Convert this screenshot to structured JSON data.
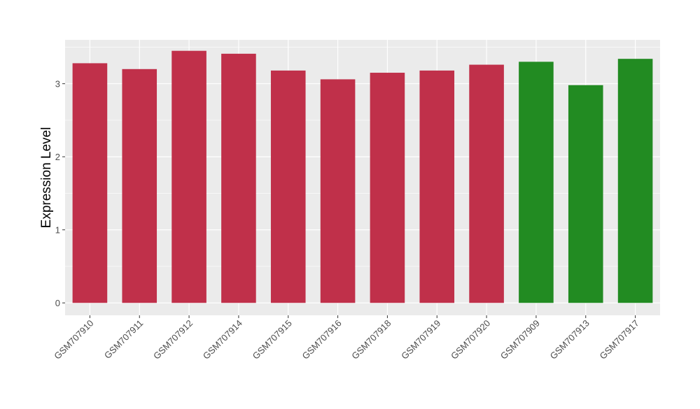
{
  "chart_data": {
    "type": "bar",
    "categories": [
      "GSM707910",
      "GSM707911",
      "GSM707912",
      "GSM707914",
      "GSM707915",
      "GSM707916",
      "GSM707918",
      "GSM707919",
      "GSM707920",
      "GSM707909",
      "GSM707913",
      "GSM707917"
    ],
    "values": [
      3.28,
      3.2,
      3.45,
      3.41,
      3.18,
      3.06,
      3.15,
      3.18,
      3.26,
      3.3,
      2.98,
      3.34
    ],
    "bar_colors": [
      "#c0304a",
      "#c0304a",
      "#c0304a",
      "#c0304a",
      "#c0304a",
      "#c0304a",
      "#c0304a",
      "#c0304a",
      "#c0304a",
      "#228b22",
      "#228b22",
      "#228b22"
    ],
    "title": "",
    "xlabel": "",
    "ylabel": "Expression Level",
    "ylim": [
      -0.17,
      3.6
    ],
    "yticks": [
      0,
      1,
      2,
      3
    ],
    "ytick_labels": [
      "0",
      "1",
      "2",
      "3"
    ],
    "grid": true,
    "panel_background": "#ebebeb",
    "grid_color": "#ffffff"
  }
}
